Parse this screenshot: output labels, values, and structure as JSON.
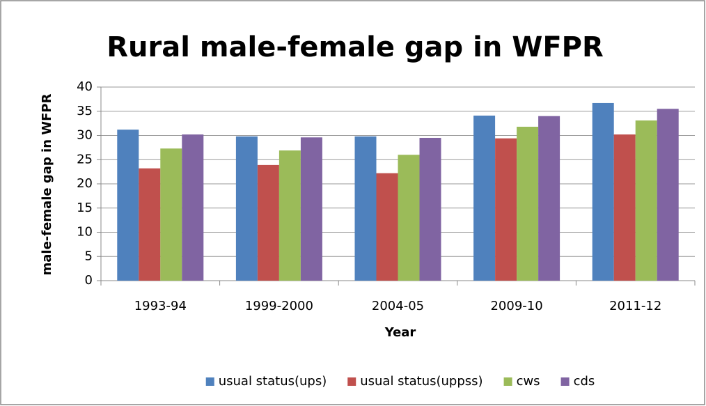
{
  "chart_data": {
    "type": "bar",
    "title": "Rural male-female gap in WFPR",
    "x_label": "Year",
    "y_label": "male-female gap in WFPR",
    "categories": [
      "1993-94",
      "1999-2000",
      "2004-05",
      "2009-10",
      "2011-12"
    ],
    "series": [
      {
        "name": "usual status(ups)",
        "color": "#4f81bd",
        "values": [
          31.2,
          29.8,
          29.8,
          34.1,
          36.7
        ]
      },
      {
        "name": "usual status(uppss)",
        "color": "#c0504d",
        "values": [
          23.2,
          23.9,
          22.2,
          29.4,
          30.2
        ]
      },
      {
        "name": "cws",
        "color": "#9bbb59",
        "values": [
          27.3,
          26.9,
          26.0,
          31.8,
          33.1
        ]
      },
      {
        "name": "cds",
        "color": "#8064a2",
        "values": [
          30.2,
          29.6,
          29.5,
          34.0,
          35.5
        ]
      }
    ],
    "ylim": [
      0,
      40
    ],
    "yticks": [
      0,
      5,
      10,
      15,
      20,
      25,
      30,
      35,
      40
    ],
    "grid": true,
    "legend": "bottom"
  }
}
